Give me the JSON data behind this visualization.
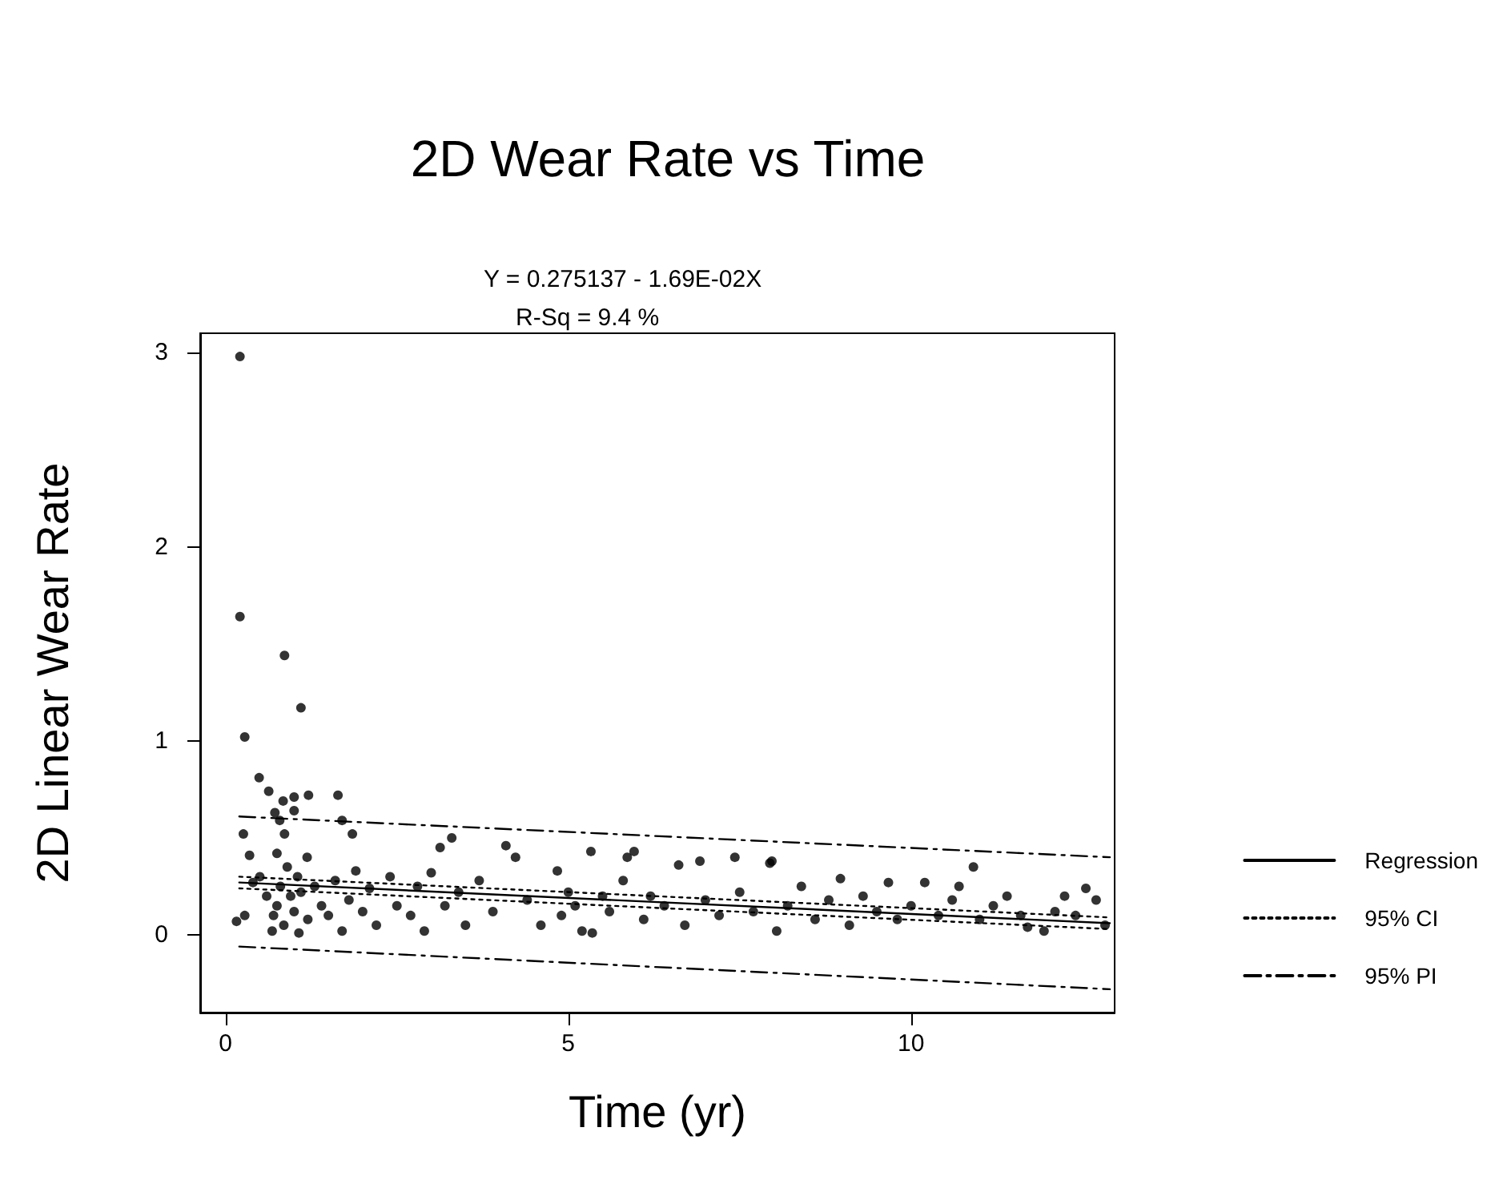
{
  "chart_data": {
    "type": "scatter",
    "title": "2D Wear Rate vs Time",
    "annotations": [
      "Y = 0.275137 - 1.69E-02X",
      "R-Sq = 9.4 %"
    ],
    "xlabel": "Time (yr)",
    "ylabel": "2D Linear Wear Rate",
    "xlim": [
      -0.37,
      12.97
    ],
    "xticks": [
      0,
      5,
      10
    ],
    "ylim": [
      -0.4,
      3.1
    ],
    "yticks": [
      0,
      1,
      2,
      3
    ],
    "grid": false,
    "legend": "right",
    "marker": "circle",
    "series": [
      {
        "color": "#000000",
        "x": [
          0.21,
          0.21,
          0.86,
          1.1,
          0.28,
          0.49,
          0.63,
          0.84,
          1.0,
          1.21,
          1.64,
          0.72,
          1.0,
          0.79,
          0.86,
          0.26,
          1.7,
          1.85,
          0.35,
          0.16,
          0.28,
          0.68,
          1.07,
          0.75,
          1.19,
          0.4,
          0.5,
          0.6,
          0.7,
          0.75,
          0.8,
          0.85,
          0.9,
          0.95,
          1.0,
          1.05,
          1.1,
          1.2,
          1.3,
          1.4,
          1.5,
          1.6,
          1.7,
          1.8,
          1.9,
          2.0,
          2.1,
          2.2,
          2.4,
          2.5,
          3.13,
          3.3,
          2.7,
          2.8,
          2.9,
          3.0,
          3.2,
          3.4,
          3.5,
          3.7,
          3.9,
          4.09,
          4.23,
          4.4,
          4.6,
          4.84,
          4.9,
          5.0,
          5.1,
          5.2,
          5.33,
          5.35,
          5.5,
          5.6,
          5.8,
          5.86,
          5.96,
          6.1,
          6.2,
          6.4,
          6.61,
          6.7,
          6.92,
          7.0,
          7.2,
          7.43,
          7.5,
          7.7,
          7.94,
          7.97,
          8.04,
          8.2,
          8.4,
          8.6,
          8.8,
          8.97,
          9.1,
          9.3,
          9.5,
          9.67,
          9.8,
          10.0,
          10.2,
          10.4,
          10.6,
          10.7,
          10.91,
          11.0,
          11.2,
          11.4,
          11.6,
          11.7,
          11.94,
          12.1,
          12.24,
          12.4,
          12.55,
          12.7,
          12.83
        ],
        "values": [
          2.98,
          1.64,
          1.44,
          1.17,
          1.02,
          0.81,
          0.74,
          0.69,
          0.71,
          0.72,
          0.72,
          0.63,
          0.64,
          0.59,
          0.52,
          0.52,
          0.59,
          0.52,
          0.41,
          0.07,
          0.1,
          0.02,
          0.01,
          0.42,
          0.4,
          0.27,
          0.3,
          0.2,
          0.1,
          0.15,
          0.25,
          0.05,
          0.35,
          0.2,
          0.12,
          0.3,
          0.22,
          0.08,
          0.25,
          0.15,
          0.1,
          0.28,
          0.02,
          0.18,
          0.33,
          0.12,
          0.24,
          0.05,
          0.3,
          0.15,
          0.45,
          0.5,
          0.1,
          0.25,
          0.02,
          0.32,
          0.15,
          0.22,
          0.05,
          0.28,
          0.12,
          0.46,
          0.4,
          0.18,
          0.05,
          0.33,
          0.1,
          0.22,
          0.15,
          0.02,
          0.43,
          0.01,
          0.2,
          0.12,
          0.28,
          0.4,
          0.43,
          0.08,
          0.2,
          0.15,
          0.36,
          0.05,
          0.38,
          0.18,
          0.1,
          0.4,
          0.22,
          0.12,
          0.37,
          0.38,
          0.02,
          0.15,
          0.25,
          0.08,
          0.18,
          0.29,
          0.05,
          0.2,
          0.12,
          0.27,
          0.08,
          0.15,
          0.27,
          0.1,
          0.18,
          0.25,
          0.35,
          0.08,
          0.15,
          0.2,
          0.1,
          0.04,
          0.02,
          0.12,
          0.2,
          0.1,
          0.24,
          0.18,
          0.05
        ]
      },
      {
        "type": "line",
        "name": "Regression",
        "color": "#000000",
        "line_style": "solid",
        "marker": "none",
        "x": [
          0.2,
          12.9
        ],
        "values": [
          0.27,
          0.06
        ]
      },
      {
        "type": "line",
        "name": "95% CI",
        "color": "#000000",
        "line_style": "dotted",
        "marker": "none",
        "x": [
          0.2,
          12.9
        ],
        "values": [
          0.3,
          0.09
        ]
      },
      {
        "type": "line",
        "color": "#000000",
        "line_style": "dotted",
        "marker": "none",
        "x": [
          0.2,
          12.9
        ],
        "values": [
          0.24,
          0.03
        ]
      },
      {
        "type": "line",
        "name": "95% PI",
        "color": "#000000",
        "line_style": "dashed",
        "marker": "none",
        "x": [
          0.2,
          12.9
        ],
        "values": [
          0.61,
          0.4
        ]
      },
      {
        "type": "line",
        "color": "#000000",
        "line_style": "dashed",
        "marker": "none",
        "x": [
          0.2,
          12.9
        ],
        "values": [
          -0.06,
          -0.28
        ]
      }
    ]
  }
}
